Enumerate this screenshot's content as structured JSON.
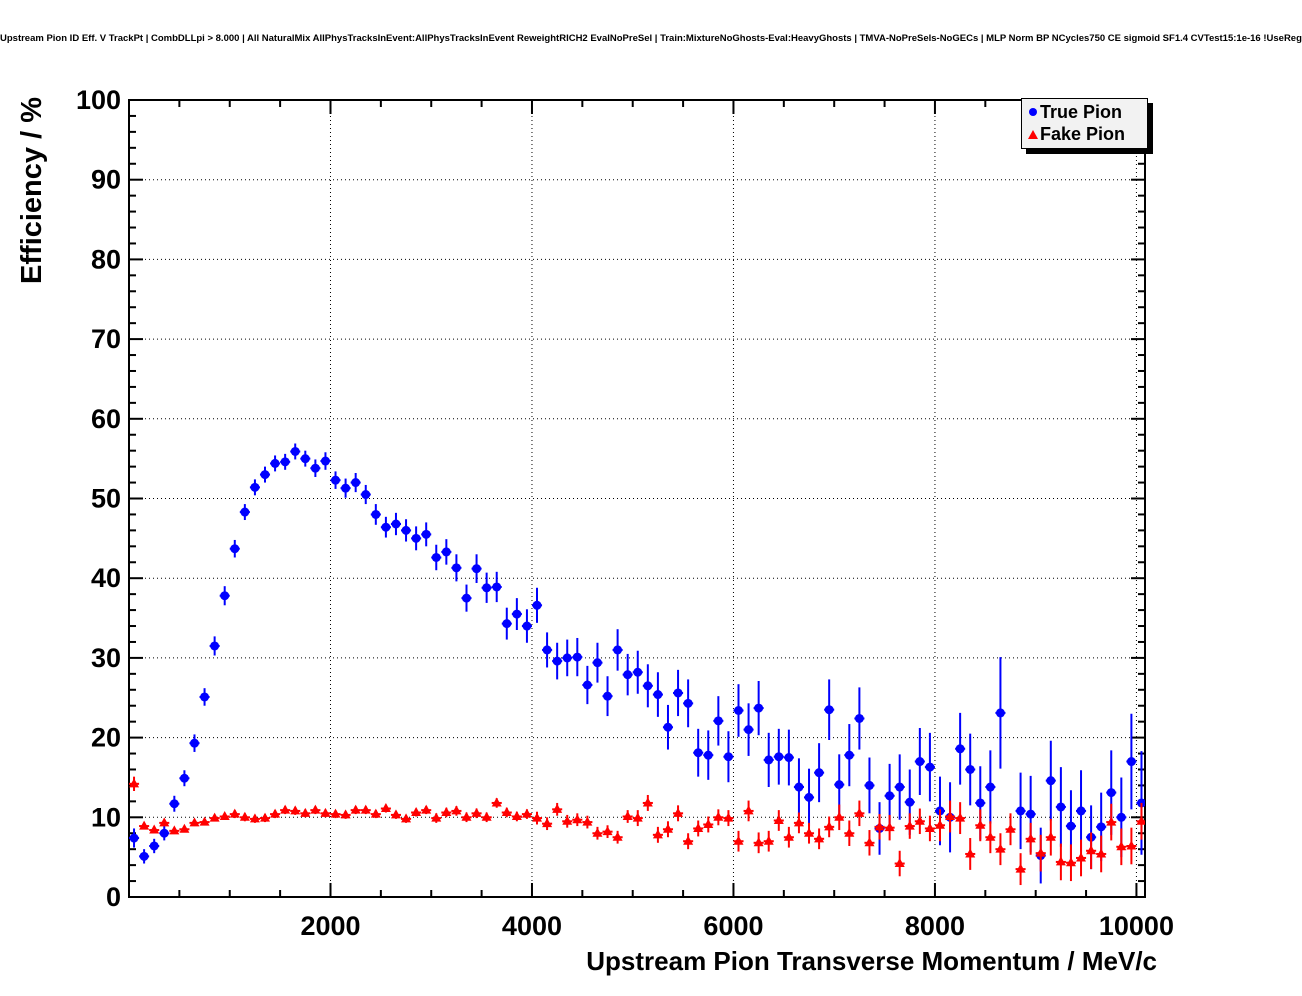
{
  "header": {
    "title": "Upstream Pion ID Eff. V TrackPt | CombDLLpi > 8.000 | All NaturalMix AllPhysTracksInEvent:AllPhysTracksInEvent ReweightRICH2 EvalNoPreSel | Train:MixtureNoGhosts-Eval:HeavyGhosts | TMVA-NoPreSels-NoGECs | MLP Norm BP NCycles750 CE sigmoid SF1.4 CVTest15:1e-16 !UseReg"
  },
  "legend": {
    "position": "top-right",
    "entries": [
      {
        "label": "True Pion",
        "marker": "filled-circle",
        "color": "#0000ff"
      },
      {
        "label": "Fake Pion",
        "marker": "filled-triangle",
        "color": "#ff0000"
      }
    ]
  },
  "colors": {
    "true_pion": "#0000ff",
    "fake_pion": "#ff0000",
    "axis": "#000000",
    "grid": "#000000",
    "legend_bg": "#f2f2f2",
    "background": "#ffffff"
  },
  "chart_data": {
    "type": "scatter",
    "title": "Upstream Pion ID Eff. V TrackPt | CombDLLpi > 8.000 | All NaturalMix AllPhysTracksInEvent:AllPhysTracksInEvent ReweightRICH2 EvalNoPreSel | Train:MixtureNoGhosts-Eval:HeavyGhosts | TMVA-NoPreSels-NoGECs | MLP Norm BP NCycles750 CE sigmoid SF1.4 CVTest15:1e-16 !UseReg",
    "xlabel": "Upstream Pion Transverse Momentum / MeV/c",
    "ylabel": "Efficiency / %",
    "xlim": [
      0,
      10085
    ],
    "ylim": [
      0,
      100
    ],
    "grid": "dotted",
    "bin_width_mev": 100,
    "x_ticks": [
      {
        "value": 2000,
        "label": "2000"
      },
      {
        "value": 4000,
        "label": "4000"
      },
      {
        "value": 6000,
        "label": "6000"
      },
      {
        "value": 8000,
        "label": "8000"
      },
      {
        "value": 10000,
        "label": "10000"
      }
    ],
    "x_minor_tick_step": 500,
    "y_ticks": [
      {
        "value": 0,
        "label": "0"
      },
      {
        "value": 10,
        "label": "10"
      },
      {
        "value": 20,
        "label": "20"
      },
      {
        "value": 30,
        "label": "30"
      },
      {
        "value": 40,
        "label": "40"
      },
      {
        "value": 50,
        "label": "50"
      },
      {
        "value": 60,
        "label": "60"
      },
      {
        "value": 70,
        "label": "70"
      },
      {
        "value": 80,
        "label": "80"
      },
      {
        "value": 90,
        "label": "90"
      },
      {
        "value": 100,
        "label": "100"
      }
    ],
    "y_minor_tick_step": 2,
    "series": [
      {
        "name": "True Pion",
        "marker": "filled-circle",
        "color": "#0000ff",
        "xerr": 50,
        "x": [
          50,
          150,
          250,
          350,
          450,
          550,
          650,
          750,
          850,
          950,
          1050,
          1150,
          1250,
          1350,
          1450,
          1550,
          1650,
          1750,
          1850,
          1950,
          2050,
          2150,
          2250,
          2350,
          2450,
          2550,
          2650,
          2750,
          2850,
          2950,
          3050,
          3150,
          3250,
          3350,
          3450,
          3550,
          3650,
          3750,
          3850,
          3950,
          4050,
          4150,
          4250,
          4350,
          4450,
          4550,
          4650,
          4750,
          4850,
          4950,
          5050,
          5150,
          5250,
          5350,
          5450,
          5550,
          5650,
          5750,
          5850,
          5950,
          6050,
          6150,
          6250,
          6350,
          6450,
          6550,
          6650,
          6750,
          6850,
          6950,
          7050,
          7150,
          7250,
          7350,
          7450,
          7550,
          7650,
          7750,
          7850,
          7950,
          8050,
          8150,
          8250,
          8350,
          8450,
          8550,
          8650,
          8850,
          8950,
          9050,
          9150,
          9250,
          9350,
          9450,
          9550,
          9650,
          9750,
          9850,
          9950,
          10050
        ],
        "y": [
          7.4,
          5.1,
          6.4,
          8.0,
          11.7,
          14.9,
          19.3,
          25.1,
          31.5,
          37.8,
          43.7,
          48.3,
          51.4,
          53.0,
          54.4,
          54.6,
          55.9,
          55.0,
          53.8,
          54.7,
          52.3,
          51.3,
          52.0,
          50.5,
          48.0,
          46.4,
          46.8,
          46.0,
          45.0,
          45.5,
          42.6,
          43.3,
          41.3,
          37.5,
          41.2,
          38.8,
          38.9,
          34.3,
          35.5,
          34.0,
          36.6,
          31.0,
          29.6,
          30.0,
          30.1,
          26.6,
          29.4,
          25.2,
          31.0,
          27.9,
          28.2,
          26.5,
          25.4,
          21.3,
          25.6,
          24.3,
          18.1,
          17.8,
          22.1,
          17.6,
          23.4,
          21.0,
          23.7,
          17.2,
          17.6,
          17.5,
          13.8,
          12.5,
          15.6,
          23.5,
          14.1,
          17.8,
          22.4,
          14.0,
          8.6,
          12.7,
          13.8,
          11.9,
          17.0,
          16.3,
          10.8,
          10.0,
          18.6,
          16.0,
          11.8,
          13.8,
          23.1,
          10.8,
          10.4,
          5.2,
          14.6,
          11.3,
          8.9,
          10.8,
          7.5,
          8.8,
          13.1,
          10.0,
          17.0,
          11.8
        ],
        "yerr": [
          1.2,
          0.9,
          0.9,
          0.9,
          1.0,
          1.0,
          1.1,
          1.1,
          1.2,
          1.2,
          1.1,
          1.0,
          1.0,
          1.0,
          1.0,
          1.0,
          1.0,
          1.0,
          1.1,
          1.1,
          1.1,
          1.2,
          1.2,
          1.2,
          1.3,
          1.3,
          1.4,
          1.4,
          1.5,
          1.5,
          1.6,
          1.6,
          1.7,
          1.7,
          1.8,
          1.9,
          1.9,
          2.0,
          2.0,
          2.1,
          2.2,
          2.2,
          2.3,
          2.3,
          2.4,
          2.4,
          2.5,
          2.5,
          2.6,
          2.6,
          2.7,
          2.7,
          2.8,
          2.8,
          2.9,
          3.0,
          3.0,
          3.1,
          3.1,
          3.2,
          3.3,
          3.3,
          3.4,
          3.4,
          3.5,
          3.5,
          3.6,
          3.6,
          3.7,
          3.8,
          3.8,
          3.9,
          3.9,
          3.5,
          3.3,
          4.0,
          4.1,
          4.1,
          4.2,
          4.3,
          4.3,
          4.4,
          4.5,
          4.5,
          4.6,
          4.6,
          7.0,
          4.8,
          4.8,
          3.5,
          5.0,
          5.0,
          4.5,
          5.1,
          4.0,
          4.3,
          5.3,
          5.0,
          6.0,
          6.5
        ]
      },
      {
        "name": "Fake Pion",
        "marker": "filled-triangle",
        "color": "#ff0000",
        "xerr": 50,
        "x": [
          50,
          150,
          250,
          350,
          450,
          550,
          650,
          750,
          850,
          950,
          1050,
          1150,
          1250,
          1350,
          1450,
          1550,
          1650,
          1750,
          1850,
          1950,
          2050,
          2150,
          2250,
          2350,
          2450,
          2550,
          2650,
          2750,
          2850,
          2950,
          3050,
          3150,
          3250,
          3350,
          3450,
          3550,
          3650,
          3750,
          3850,
          3950,
          4050,
          4150,
          4250,
          4350,
          4450,
          4550,
          4650,
          4750,
          4850,
          4950,
          5050,
          5150,
          5250,
          5350,
          5450,
          5550,
          5650,
          5750,
          5850,
          5950,
          6050,
          6150,
          6250,
          6350,
          6450,
          6550,
          6650,
          6750,
          6850,
          6950,
          7050,
          7150,
          7250,
          7350,
          7450,
          7550,
          7650,
          7750,
          7850,
          7950,
          8050,
          8150,
          8250,
          8350,
          8450,
          8550,
          8650,
          8750,
          8850,
          8950,
          9050,
          9150,
          9250,
          9350,
          9450,
          9550,
          9650,
          9750,
          9850,
          9950,
          10050
        ],
        "y": [
          14.2,
          8.9,
          8.4,
          9.3,
          8.3,
          8.5,
          9.3,
          9.4,
          9.9,
          10.1,
          10.4,
          10.0,
          9.8,
          9.9,
          10.4,
          10.9,
          10.8,
          10.5,
          10.9,
          10.5,
          10.4,
          10.3,
          10.9,
          10.9,
          10.4,
          11.1,
          10.3,
          9.8,
          10.6,
          10.9,
          9.9,
          10.6,
          10.8,
          10.0,
          10.5,
          10.0,
          11.8,
          10.6,
          10.1,
          10.4,
          9.9,
          9.2,
          11.0,
          9.5,
          9.7,
          9.4,
          8.0,
          8.2,
          7.5,
          10.1,
          9.9,
          11.8,
          7.8,
          8.5,
          10.5,
          7.0,
          8.6,
          9.1,
          10.0,
          9.9,
          7.0,
          10.8,
          6.8,
          7.0,
          9.6,
          7.5,
          9.3,
          8.0,
          7.3,
          8.8,
          10.0,
          8.0,
          10.5,
          6.8,
          8.8,
          8.7,
          4.2,
          8.9,
          9.5,
          8.6,
          9.0,
          10.1,
          9.9,
          5.4,
          9.0,
          7.5,
          6.0,
          8.5,
          3.5,
          7.3,
          5.5,
          7.5,
          4.4,
          4.3,
          4.9,
          5.8,
          5.4,
          9.4,
          6.3,
          6.4,
          9.5
        ],
        "yerr": [
          0.9,
          0.4,
          0.4,
          0.4,
          0.4,
          0.4,
          0.4,
          0.4,
          0.4,
          0.4,
          0.5,
          0.5,
          0.5,
          0.5,
          0.5,
          0.5,
          0.5,
          0.5,
          0.5,
          0.5,
          0.5,
          0.5,
          0.5,
          0.5,
          0.5,
          0.5,
          0.5,
          0.5,
          0.5,
          0.5,
          0.6,
          0.6,
          0.6,
          0.6,
          0.6,
          0.6,
          0.6,
          0.6,
          0.6,
          0.6,
          0.8,
          0.8,
          0.8,
          0.8,
          0.8,
          0.8,
          0.8,
          0.8,
          0.8,
          0.8,
          1.0,
          1.0,
          1.0,
          1.0,
          1.0,
          1.0,
          1.0,
          1.0,
          1.0,
          1.0,
          1.3,
          1.3,
          1.3,
          1.3,
          1.3,
          1.3,
          1.3,
          1.3,
          1.3,
          1.3,
          1.6,
          1.6,
          1.6,
          1.6,
          1.6,
          1.6,
          1.6,
          1.6,
          1.6,
          1.6,
          2.0,
          2.0,
          2.0,
          2.0,
          2.0,
          2.0,
          2.0,
          2.0,
          2.0,
          2.0,
          2.3,
          2.3,
          2.3,
          2.3,
          2.3,
          2.3,
          2.3,
          2.3,
          2.3,
          2.3,
          2.3
        ]
      }
    ]
  }
}
